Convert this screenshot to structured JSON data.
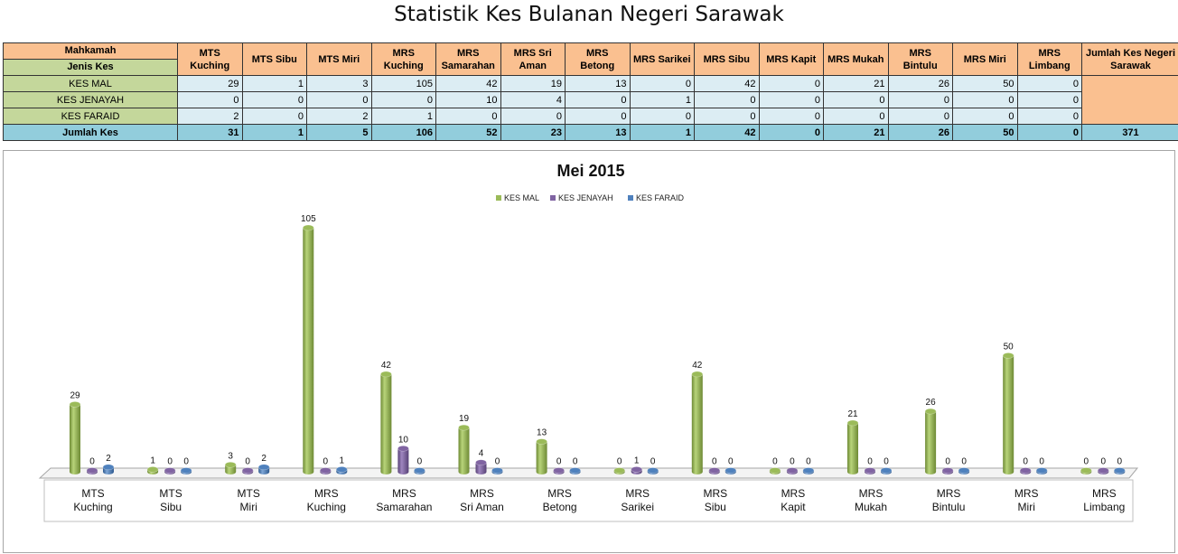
{
  "page_title": "Statistik Kes Bulanan Negeri Sarawak",
  "table": {
    "header_mahkamah": "Mahkamah",
    "header_jenis": "Jenis Kes",
    "courts": [
      "MTS Kuching",
      "MTS Sibu",
      "MTS Miri",
      "MRS Kuching",
      "MRS Samarahan",
      "MRS Sri Aman",
      "MRS Betong",
      "MRS Sarikei",
      "MRS Sibu",
      "MRS Kapit",
      "MRS Mukah",
      "MRS Bintulu",
      "MRS Miri",
      "MRS Limbang"
    ],
    "total_header": "Jumlah Kes Negeri Sarawak",
    "rows": [
      {
        "label": "KES MAL",
        "values": [
          29,
          1,
          3,
          105,
          42,
          19,
          13,
          0,
          42,
          0,
          21,
          26,
          50,
          0
        ]
      },
      {
        "label": "KES JENAYAH",
        "values": [
          0,
          0,
          0,
          0,
          10,
          4,
          0,
          1,
          0,
          0,
          0,
          0,
          0,
          0
        ]
      },
      {
        "label": "KES FARAID",
        "values": [
          2,
          0,
          2,
          1,
          0,
          0,
          0,
          0,
          0,
          0,
          0,
          0,
          0,
          0
        ]
      }
    ],
    "sum_row": {
      "label": "Jumlah Kes",
      "values": [
        31,
        1,
        5,
        106,
        52,
        23,
        13,
        1,
        42,
        0,
        21,
        26,
        50,
        0
      ]
    },
    "grand_total": 371
  },
  "colors": {
    "kes_mal": "#9bbb59",
    "kes_jenayah": "#8064a2",
    "kes_faraid": "#4f81bd"
  },
  "chart_data": {
    "type": "bar",
    "title": "Mei 2015",
    "categories": [
      "MTS\nKuching",
      "MTS\nSibu",
      "MTS\nMiri",
      "MRS\nKuching",
      "MRS\nSamarahan",
      "MRS\nSri Aman",
      "MRS\nBetong",
      "MRS\nSarikei",
      "MRS\nSibu",
      "MRS\nKapit",
      "MRS\nMukah",
      "MRS\nBintulu",
      "MRS\nMiri",
      "MRS\nLimbang"
    ],
    "series": [
      {
        "name": "KES MAL",
        "values": [
          29,
          1,
          3,
          105,
          42,
          19,
          13,
          0,
          42,
          0,
          21,
          26,
          50,
          0
        ]
      },
      {
        "name": "KES JENAYAH",
        "values": [
          0,
          0,
          0,
          0,
          10,
          4,
          0,
          1,
          0,
          0,
          0,
          0,
          0,
          0
        ]
      },
      {
        "name": "KES FARAID",
        "values": [
          2,
          0,
          2,
          1,
          0,
          0,
          0,
          0,
          0,
          0,
          0,
          0,
          0,
          0
        ]
      }
    ],
    "ylim": [
      0,
      105
    ],
    "legend": "top-center",
    "grid": false,
    "style": "3d-cylinder"
  }
}
